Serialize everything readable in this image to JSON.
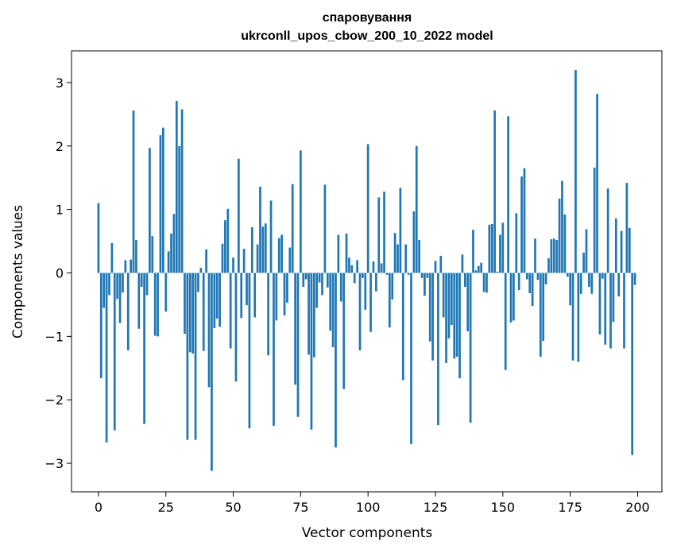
{
  "chart_data": {
    "type": "bar",
    "title": "спаровування",
    "subtitle": "ukrconll_upos_cbow_200_10_2022 model",
    "xlabel": "Vector components",
    "ylabel": "Components values",
    "xlim": [
      -10,
      209
    ],
    "ylim": [
      -3.45,
      3.5
    ],
    "xticks": [
      0,
      25,
      50,
      75,
      100,
      125,
      150,
      175,
      200
    ],
    "yticks": [
      -3,
      -2,
      -1,
      0,
      1,
      2,
      3
    ],
    "xtick_labels": [
      "0",
      "25",
      "50",
      "75",
      "100",
      "125",
      "150",
      "175",
      "200"
    ],
    "ytick_labels": [
      "−3",
      "−2",
      "−1",
      "0",
      "1",
      "2",
      "3"
    ],
    "grid": false,
    "bar_color": "#1f77b4",
    "x": [
      0,
      1,
      2,
      3,
      4,
      5,
      6,
      7,
      8,
      9,
      10,
      11,
      12,
      13,
      14,
      15,
      16,
      17,
      18,
      19,
      20,
      21,
      22,
      23,
      24,
      25,
      26,
      27,
      28,
      29,
      30,
      31,
      32,
      33,
      34,
      35,
      36,
      37,
      38,
      39,
      40,
      41,
      42,
      43,
      44,
      45,
      46,
      47,
      48,
      49,
      50,
      51,
      52,
      53,
      54,
      55,
      56,
      57,
      58,
      59,
      60,
      61,
      62,
      63,
      64,
      65,
      66,
      67,
      68,
      69,
      70,
      71,
      72,
      73,
      74,
      75,
      76,
      77,
      78,
      79,
      80,
      81,
      82,
      83,
      84,
      85,
      86,
      87,
      88,
      89,
      90,
      91,
      92,
      93,
      94,
      95,
      96,
      97,
      98,
      99,
      100,
      101,
      102,
      103,
      104,
      105,
      106,
      107,
      108,
      109,
      110,
      111,
      112,
      113,
      114,
      115,
      116,
      117,
      118,
      119,
      120,
      121,
      122,
      123,
      124,
      125,
      126,
      127,
      128,
      129,
      130,
      131,
      132,
      133,
      134,
      135,
      136,
      137,
      138,
      139,
      140,
      141,
      142,
      143,
      144,
      145,
      146,
      147,
      148,
      149,
      150,
      151,
      152,
      153,
      154,
      155,
      156,
      157,
      158,
      159,
      160,
      161,
      162,
      163,
      164,
      165,
      166,
      167,
      168,
      169,
      170,
      171,
      172,
      173,
      174,
      175,
      176,
      177,
      178,
      179,
      180,
      181,
      182,
      183,
      184,
      185,
      186,
      187,
      188,
      189,
      190,
      191,
      192,
      193,
      194,
      195,
      196,
      197,
      198,
      199
    ],
    "values": [
      1.1,
      -1.66,
      -0.55,
      -2.67,
      -0.35,
      0.47,
      -2.48,
      -0.41,
      -0.79,
      -0.31,
      0.2,
      -1.22,
      0.21,
      2.56,
      0.52,
      -0.88,
      -0.22,
      -2.38,
      -0.35,
      1.97,
      0.58,
      -0.99,
      -1.0,
      2.17,
      2.29,
      -0.61,
      0.34,
      0.62,
      0.93,
      2.71,
      2.0,
      2.58,
      -0.96,
      -2.63,
      -1.25,
      -1.27,
      -2.63,
      -0.3,
      0.08,
      -1.23,
      0.37,
      -1.8,
      -3.12,
      -0.87,
      -0.72,
      -0.85,
      0.46,
      0.83,
      1.01,
      -1.19,
      0.24,
      -1.71,
      1.8,
      -0.71,
      0.38,
      -0.51,
      -2.45,
      0.72,
      -0.7,
      0.45,
      1.36,
      0.73,
      0.78,
      -1.3,
      1.14,
      -2.41,
      -0.75,
      0.55,
      0.6,
      -0.67,
      -0.47,
      0.4,
      1.4,
      -1.76,
      -2.27,
      1.93,
      -0.22,
      -0.1,
      -1.29,
      -2.47,
      -1.33,
      -0.55,
      -0.15,
      -0.35,
      1.39,
      -0.23,
      -0.91,
      -1.17,
      -2.75,
      0.6,
      -0.45,
      -1.83,
      0.62,
      0.24,
      0.12,
      -0.16,
      0.2,
      -1.22,
      -0.08,
      -0.58,
      2.03,
      -0.93,
      0.18,
      -0.29,
      1.19,
      0.15,
      1.28,
      -0.03,
      -0.86,
      -0.42,
      0.63,
      0.45,
      1.34,
      -1.69,
      0.45,
      -0.03,
      -2.7,
      0.97,
      2.0,
      0.52,
      -0.08,
      -0.36,
      -0.08,
      -1.08,
      -1.38,
      0.19,
      -2.4,
      0.27,
      -0.7,
      -1.42,
      -1.03,
      -0.82,
      -1.35,
      -1.32,
      -1.66,
      0.29,
      -0.22,
      -0.92,
      -2.36,
      0.68,
      0.04,
      0.11,
      0.16,
      -0.3,
      -0.31,
      0.76,
      0.77,
      2.56,
      0.02,
      0.6,
      0.79,
      -1.53,
      2.47,
      -0.78,
      -0.75,
      0.94,
      -0.27,
      1.52,
      1.65,
      -0.1,
      -0.32,
      -0.52,
      0.54,
      -0.11,
      -1.32,
      -1.07,
      -0.18,
      0.23,
      0.53,
      0.54,
      0.52,
      1.17,
      1.45,
      0.92,
      -0.06,
      -0.51,
      -1.38,
      3.2,
      -1.4,
      -0.33,
      0.32,
      0.69,
      -0.22,
      -0.33,
      1.66,
      2.82,
      -0.97,
      -0.09,
      -1.13,
      1.33,
      -1.19,
      -0.77,
      0.86,
      -0.37,
      0.66,
      -1.19,
      1.42,
      0.71,
      -2.87,
      -0.19
    ]
  }
}
